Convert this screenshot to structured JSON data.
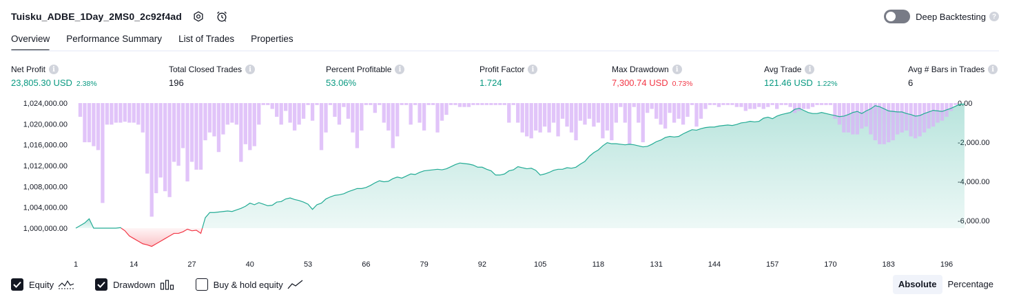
{
  "header": {
    "title": "Tuisku_ADBE_1Day_2MS0_2c92f4ad",
    "deep_backtesting_label": "Deep Backtesting"
  },
  "tabs": [
    {
      "label": "Overview",
      "active": true
    },
    {
      "label": "Performance Summary",
      "active": false
    },
    {
      "label": "List of Trades",
      "active": false
    },
    {
      "label": "Properties",
      "active": false
    }
  ],
  "metrics": [
    {
      "label": "Net Profit",
      "value": "23,805.30 USD",
      "sub": "2.38%",
      "color": "green"
    },
    {
      "label": "Total Closed Trades",
      "value": "196",
      "sub": "",
      "color": "dark"
    },
    {
      "label": "Percent Profitable",
      "value": "53.06%",
      "sub": "",
      "color": "green"
    },
    {
      "label": "Profit Factor",
      "value": "1.724",
      "sub": "",
      "color": "green"
    },
    {
      "label": "Max Drawdown",
      "value": "7,300.74 USD",
      "sub": "0.73%",
      "color": "red"
    },
    {
      "label": "Avg Trade",
      "value": "121.46 USD",
      "sub": "1.22%",
      "color": "green"
    },
    {
      "label": "Avg # Bars in Trades",
      "value": "6",
      "sub": "",
      "color": "dark"
    }
  ],
  "legend": {
    "equity_label": "Equity",
    "drawdown_label": "Drawdown",
    "buy_hold_label": "Buy & hold equity",
    "equity_checked": true,
    "drawdown_checked": true,
    "buy_hold_checked": false
  },
  "mode": {
    "absolute_label": "Absolute",
    "percentage_label": "Percentage",
    "selected": "Absolute"
  },
  "colors": {
    "equity_up": "#22ab94",
    "equity_down": "#f23645",
    "drawdown_bar": "#d9b3f7",
    "text": "#131722"
  },
  "chart_data": {
    "type": "area",
    "x_ticks": [
      "1",
      "14",
      "27",
      "40",
      "53",
      "66",
      "79",
      "92",
      "105",
      "118",
      "131",
      "144",
      "157",
      "170",
      "183",
      "196"
    ],
    "left_axis": {
      "ticks": [
        "1,024,000.00",
        "1,020,000.00",
        "1,016,000.00",
        "1,012,000.00",
        "1,008,000.00",
        "1,004,000.00",
        "1,000,000.00"
      ],
      "range": [
        1000000,
        1024000
      ]
    },
    "right_axis": {
      "ticks": [
        "0.00",
        "-2,000.00",
        "-4,000.00",
        "-6,000.00"
      ],
      "range": [
        -6000,
        0
      ]
    },
    "series": [
      {
        "name": "Equity",
        "trade_start": 1,
        "equity": [
          1000000,
          1000500,
          1001000,
          1001800,
          1000000,
          1000000,
          1000000,
          1000000,
          1000000,
          1000000,
          1000100,
          999500,
          998500,
          998000,
          997500,
          997000,
          996800,
          996500,
          997000,
          997500,
          998000,
          998500,
          999000,
          999000,
          999300,
          999800,
          999500,
          999600,
          999000,
          1002000,
          1003000,
          1003000,
          1003100,
          1003200,
          1003300,
          1003200,
          1003500,
          1003800,
          1004200,
          1004800,
          1004500,
          1004900,
          1004600,
          1004300,
          1004400,
          1005000,
          1005100,
          1005600,
          1005800,
          1005500,
          1005300,
          1005000,
          1004600,
          1003600,
          1004500,
          1004800,
          1005600,
          1006000,
          1006300,
          1006400,
          1006600,
          1007000,
          1007300,
          1007600,
          1007600,
          1007800,
          1008200,
          1008700,
          1009100,
          1008900,
          1009000,
          1009500,
          1009800,
          1009600,
          1010000,
          1010400,
          1010300,
          1010700,
          1011000,
          1011100,
          1011200,
          1011300,
          1011200,
          1011400,
          1011800,
          1012200,
          1012500,
          1012400,
          1012300,
          1012100,
          1011700,
          1011700,
          1011300,
          1011000,
          1010200,
          1010200,
          1010400,
          1011000,
          1011200,
          1011800,
          1011600,
          1011400,
          1011500,
          1011100,
          1010200,
          1010400,
          1010700,
          1011100,
          1011300,
          1011300,
          1011600,
          1011500,
          1011700,
          1012300,
          1012800,
          1013800,
          1014500,
          1015000,
          1015800,
          1016400,
          1016200,
          1016200,
          1016100,
          1016000,
          1016100,
          1016000,
          1015800,
          1015600,
          1015700,
          1016100,
          1016600,
          1016900,
          1017400,
          1017600,
          1017500,
          1017600,
          1018100,
          1018500,
          1018900,
          1018800,
          1019100,
          1019300,
          1019400,
          1019400,
          1019600,
          1019700,
          1019800,
          1019700,
          1019900,
          1020200,
          1020300,
          1020500,
          1020400,
          1020500,
          1021100,
          1021300,
          1021000,
          1021500,
          1021800,
          1022000,
          1022200,
          1022800,
          1023000,
          1022600,
          1022200,
          1022000,
          1022000,
          1022200,
          1022000,
          1021800,
          1021600,
          1021400,
          1021500,
          1021800,
          1022200,
          1022400,
          1022000,
          1022500,
          1022900,
          1023500,
          1023300,
          1022900,
          1022500,
          1022400,
          1022300,
          1022300,
          1022000,
          1021800,
          1021500,
          1021600,
          1022000,
          1022300,
          1022600,
          1022500,
          1022400,
          1022700,
          1023000,
          1023400,
          1023800,
          1023800
        ]
      },
      {
        "name": "Drawdown",
        "trade_start": 2,
        "drawdown": [
          -700,
          -2000,
          -2000,
          -2200,
          -2400,
          -5100,
          -1100,
          -1100,
          -1000,
          -1000,
          -950,
          -1000,
          -1000,
          -1100,
          -1500,
          -3600,
          -5800,
          -4600,
          -3800,
          -4500,
          -4800,
          -3000,
          -3200,
          -2300,
          -4000,
          -3000,
          -3400,
          -3400,
          -1900,
          -1500,
          -1700,
          -2500,
          -1600,
          -1100,
          -1000,
          -1100,
          -3000,
          -2100,
          -2400,
          -2200,
          -1100,
          -100,
          -100,
          -300,
          -700,
          -1100,
          -400,
          -1000,
          -1400,
          -1100,
          -800,
          -100,
          -900,
          -100,
          -2400,
          -1500,
          -100,
          -700,
          -1100,
          -200,
          -800,
          -1500,
          -2300,
          -1400,
          -100,
          -100,
          -500,
          -100,
          -1000,
          -1400,
          -2300,
          -1700,
          -100,
          -100,
          -1100,
          -100,
          -1000,
          -1400,
          -100,
          -100,
          -1500,
          -900,
          -600,
          -100,
          -100,
          -200,
          -200,
          -200,
          -100,
          -100,
          -100,
          -100,
          -100,
          -100,
          -100,
          -100,
          -1000,
          -100,
          -1000,
          -1500,
          -1700,
          -1800,
          -1400,
          -1500,
          -1200,
          -1500,
          -1000,
          -1700,
          -800,
          -1200,
          -1500,
          -1900,
          -900,
          -1100,
          -800,
          -1200,
          -1000,
          -1800,
          -1400,
          -1900,
          -1000,
          -200,
          -1000,
          -2100,
          -200,
          -1000,
          -2000,
          -500,
          -300,
          -800,
          -1100,
          -1300,
          -500,
          -1000,
          -800,
          -1100,
          -700,
          -100,
          -1200,
          -800,
          -300,
          -100,
          -100,
          -200,
          -100,
          -100,
          -100,
          -200,
          -200,
          -400,
          -300,
          -300,
          -200,
          -300,
          -200,
          -100,
          -300,
          -100,
          -100,
          -200,
          -500,
          -400,
          -300,
          -300,
          -200,
          -100,
          -100,
          -100,
          -100,
          -800,
          -1100,
          -1500,
          -1500,
          -1600,
          -1600,
          -1300,
          -1200,
          -1600,
          -1900,
          -2100,
          -2100,
          -2000,
          -1900,
          -1600,
          -1500,
          -1400,
          -1700,
          -1800,
          -1700,
          -1500,
          -1300,
          -1200,
          -1000,
          -900,
          -700,
          -400,
          -100
        ]
      }
    ]
  }
}
